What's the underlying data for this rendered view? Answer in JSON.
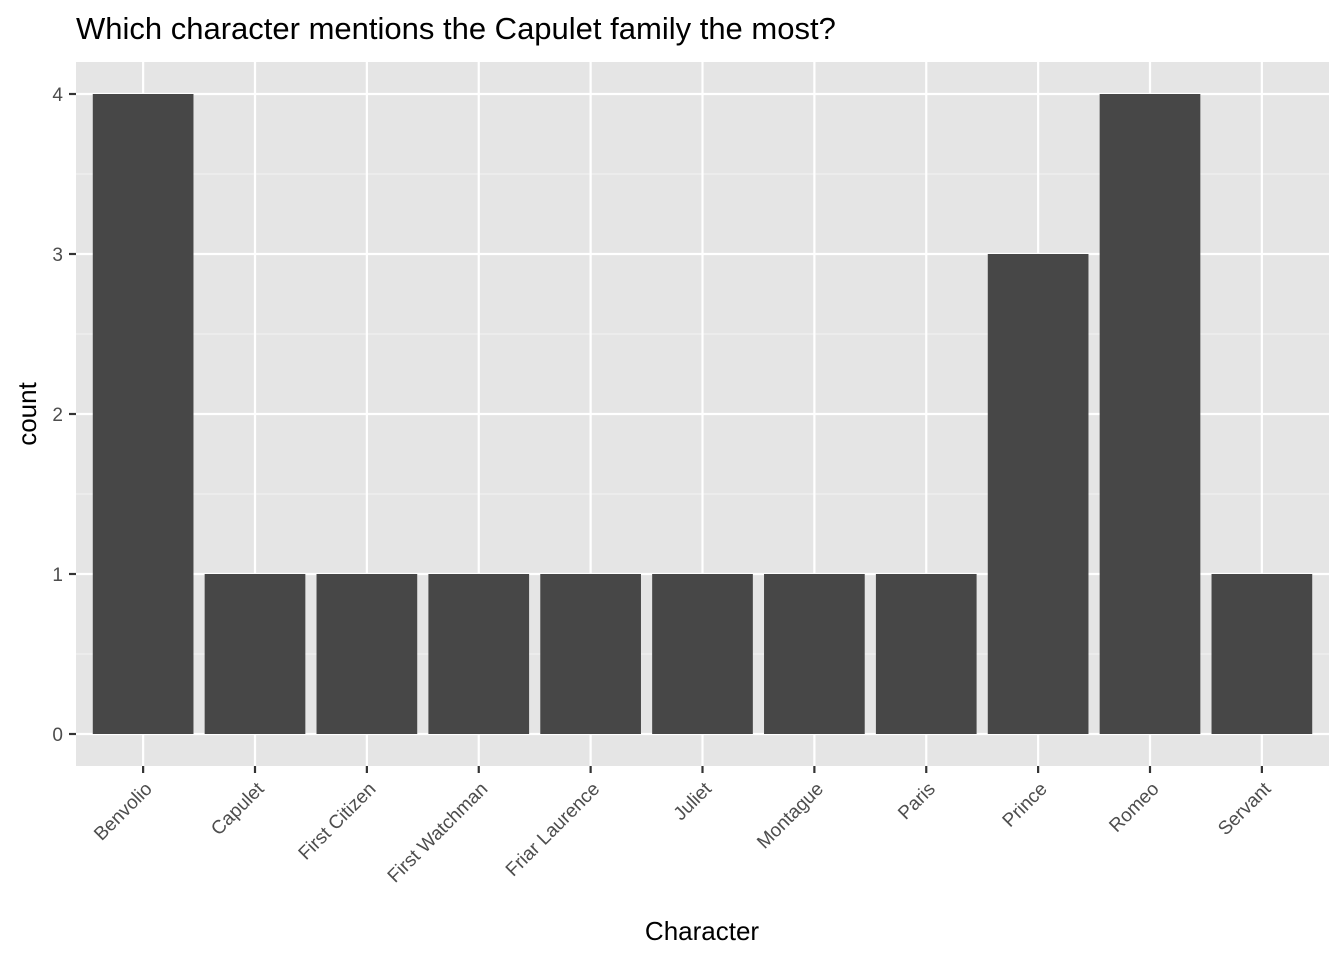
{
  "chart_data": {
    "type": "bar",
    "title": "Which character mentions the Capulet family the most?",
    "xlabel": "Character",
    "ylabel": "count",
    "categories": [
      "Benvolio",
      "Capulet",
      "First Citizen",
      "First Watchman",
      "Friar Laurence",
      "Juliet",
      "Montague",
      "Paris",
      "Prince",
      "Romeo",
      "Servant"
    ],
    "values": [
      4,
      1,
      1,
      1,
      1,
      1,
      1,
      1,
      3,
      4,
      1
    ],
    "ylim": [
      -0.2,
      4.2
    ],
    "yticks": [
      0,
      1,
      2,
      3,
      4
    ],
    "grid": true,
    "legend": "none",
    "colors": {
      "bar": "#474747",
      "panel": "#e5e5e5",
      "grid_major": "#ffffff",
      "grid_minor": "#f2f2f2",
      "tick": "#333333"
    }
  }
}
